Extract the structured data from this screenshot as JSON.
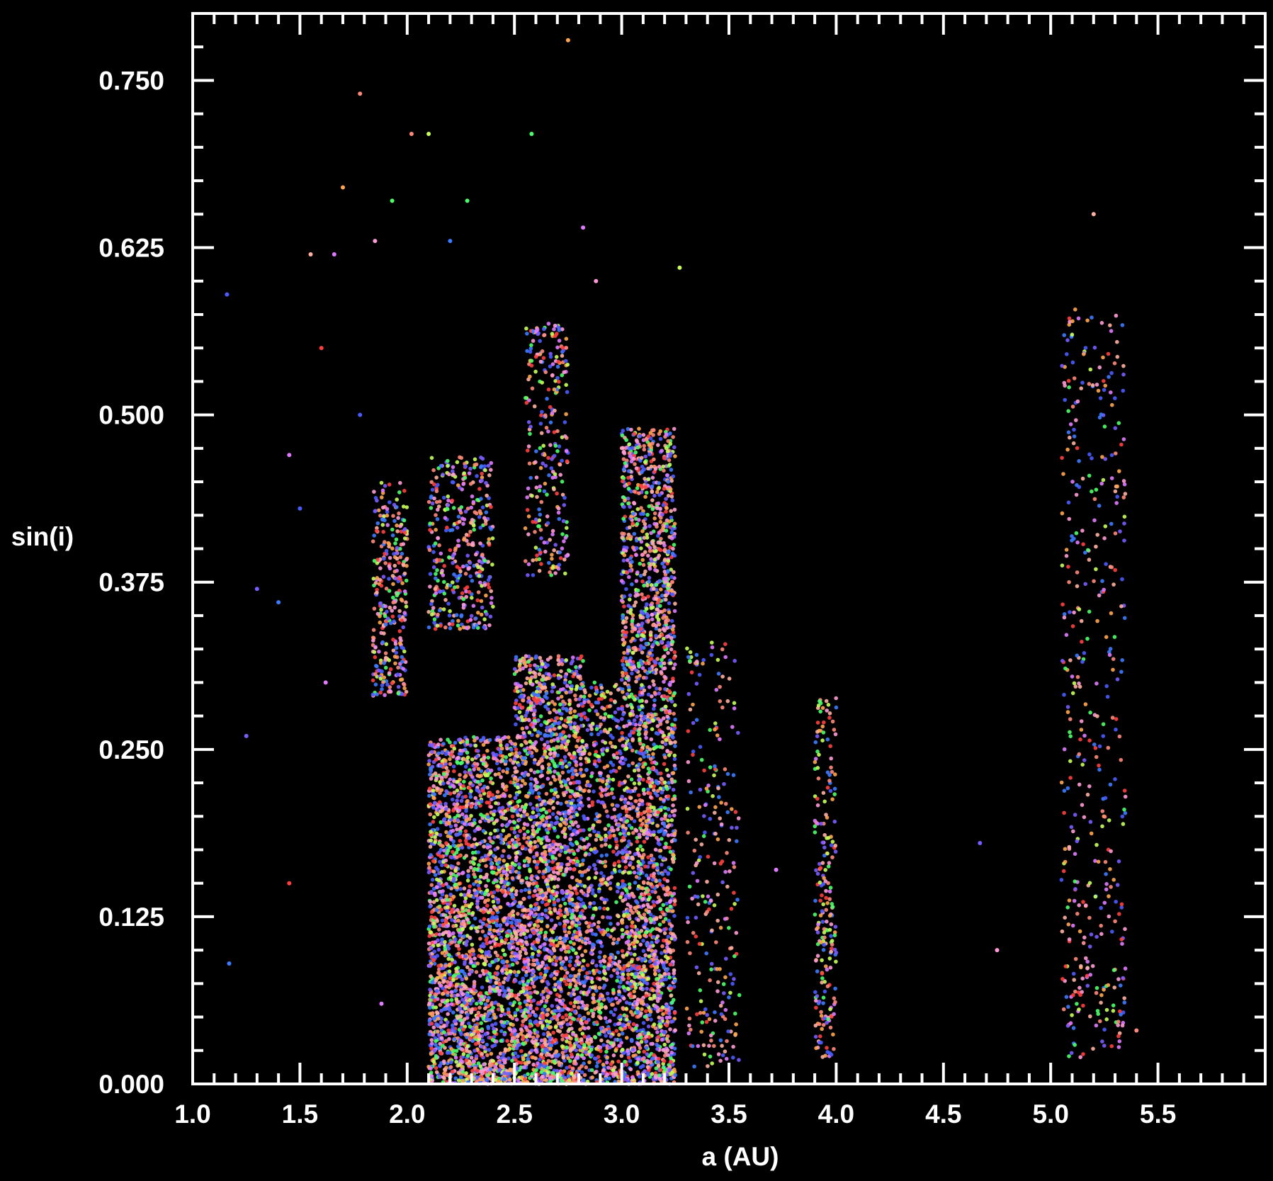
{
  "chart_data": {
    "type": "scatter",
    "title": "",
    "xlabel": "a (AU)",
    "ylabel": "sin(i)",
    "xlim": [
      1.0,
      6.0
    ],
    "ylim": [
      0.0,
      0.8
    ],
    "x_ticks": [
      1.0,
      1.5,
      2.0,
      2.5,
      3.0,
      3.5,
      4.0,
      4.5,
      5.0,
      5.5
    ],
    "x_tick_labels": [
      "1.0",
      "1.5",
      "2.0",
      "2.5",
      "3.0",
      "3.5",
      "4.0",
      "4.5",
      "5.0",
      "5.5"
    ],
    "y_ticks": [
      0.0,
      0.125,
      0.25,
      0.375,
      0.5,
      0.625,
      0.75
    ],
    "y_tick_labels": [
      "0.000",
      "0.125",
      "0.250",
      "0.375",
      "0.500",
      "0.625",
      "0.750"
    ],
    "grid": false,
    "legend": "none",
    "background": "#000000",
    "axis_color": "#ffffff",
    "point_colors": [
      "#4b5cff",
      "#3d7bff",
      "#7a5cff",
      "#ff8a7a",
      "#ffb0a0",
      "#ff9bd6",
      "#e07bff",
      "#ffa64d",
      "#c8ff5a",
      "#4dff6a",
      "#ff4040"
    ],
    "clusters": [
      {
        "a": [
          1.84,
          2.0
        ],
        "sini": [
          0.29,
          0.45
        ],
        "count": 300
      },
      {
        "a": [
          2.1,
          2.4
        ],
        "sini": [
          0.34,
          0.47
        ],
        "count": 380
      },
      {
        "a": [
          2.55,
          2.75
        ],
        "sini": [
          0.38,
          0.57
        ],
        "count": 260
      },
      {
        "a": [
          2.1,
          2.5
        ],
        "sini": [
          0.0,
          0.26
        ],
        "count": 2200
      },
      {
        "a": [
          2.5,
          2.82
        ],
        "sini": [
          0.0,
          0.32
        ],
        "count": 2100
      },
      {
        "a": [
          2.82,
          3.0
        ],
        "sini": [
          0.0,
          0.3
        ],
        "count": 700
      },
      {
        "a": [
          3.0,
          3.25
        ],
        "sini": [
          0.0,
          0.49
        ],
        "count": 2300
      },
      {
        "a": [
          3.3,
          3.55
        ],
        "sini": [
          0.01,
          0.33
        ],
        "count": 240
      },
      {
        "a": [
          3.9,
          4.0
        ],
        "sini": [
          0.02,
          0.29
        ],
        "count": 220
      },
      {
        "a": [
          5.05,
          5.35
        ],
        "sini": [
          0.02,
          0.58
        ],
        "count": 430
      }
    ],
    "scattered_points": [
      {
        "x": 1.16,
        "y": 0.59
      },
      {
        "x": 1.17,
        "y": 0.09
      },
      {
        "x": 1.25,
        "y": 0.26
      },
      {
        "x": 1.3,
        "y": 0.37
      },
      {
        "x": 1.4,
        "y": 0.36
      },
      {
        "x": 1.45,
        "y": 0.47
      },
      {
        "x": 1.5,
        "y": 0.43
      },
      {
        "x": 1.55,
        "y": 0.62
      },
      {
        "x": 1.66,
        "y": 0.62
      },
      {
        "x": 1.7,
        "y": 0.67
      },
      {
        "x": 1.78,
        "y": 0.74
      },
      {
        "x": 1.85,
        "y": 0.63
      },
      {
        "x": 1.93,
        "y": 0.66
      },
      {
        "x": 2.02,
        "y": 0.71
      },
      {
        "x": 2.1,
        "y": 0.71
      },
      {
        "x": 2.2,
        "y": 0.63
      },
      {
        "x": 2.28,
        "y": 0.66
      },
      {
        "x": 2.58,
        "y": 0.71
      },
      {
        "x": 2.75,
        "y": 0.78
      },
      {
        "x": 2.82,
        "y": 0.64
      },
      {
        "x": 2.88,
        "y": 0.6
      },
      {
        "x": 3.27,
        "y": 0.61
      },
      {
        "x": 3.72,
        "y": 0.16
      },
      {
        "x": 4.67,
        "y": 0.18
      },
      {
        "x": 4.75,
        "y": 0.1
      },
      {
        "x": 5.2,
        "y": 0.65
      },
      {
        "x": 5.4,
        "y": 0.04
      },
      {
        "x": 1.6,
        "y": 0.55
      },
      {
        "x": 1.45,
        "y": 0.15
      },
      {
        "x": 1.62,
        "y": 0.3
      },
      {
        "x": 1.78,
        "y": 0.5
      },
      {
        "x": 1.88,
        "y": 0.06
      }
    ]
  }
}
